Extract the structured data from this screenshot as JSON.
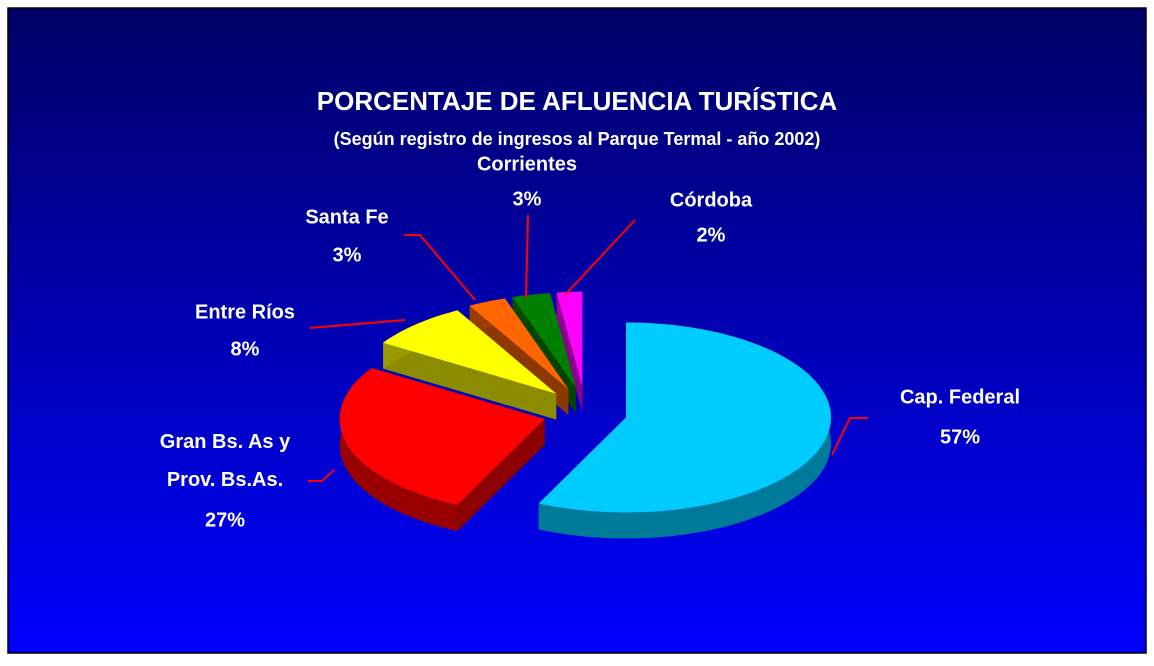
{
  "chart_data": {
    "type": "pie",
    "title": "PORCENTAJE DE AFLUENCIA TURÍSTICA",
    "subtitle": "(Según registro de ingresos al Parque Termal - año 2002)",
    "categories": [
      "Cap. Federal",
      "Gran Bs. As y\nProv. Bs.As.",
      "Entre Ríos",
      "Santa Fe",
      "Corrientes",
      "Córdoba"
    ],
    "values": [
      57,
      27,
      8,
      3,
      3,
      2
    ],
    "value_labels": [
      "57%",
      "27%",
      "8%",
      "3%",
      "3%",
      "2%"
    ],
    "colors": [
      "#00ccff",
      "#ff0000",
      "#ffff00",
      "#ff6600",
      "#008000",
      "#ff00ff"
    ]
  }
}
